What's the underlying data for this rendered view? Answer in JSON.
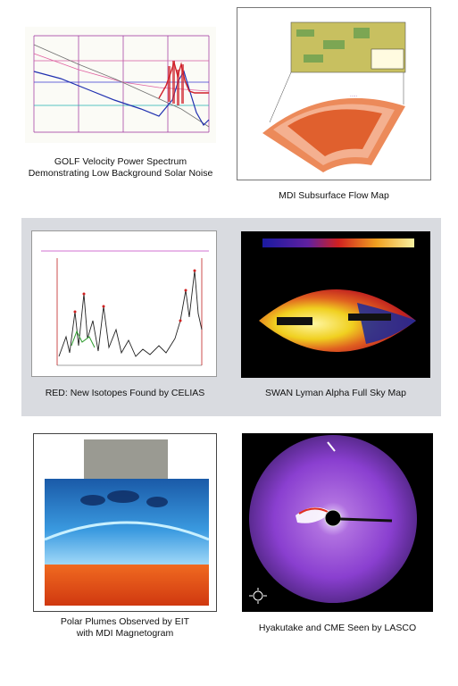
{
  "panels": [
    {
      "caption_line1": "GOLF Velocity Power Spectrum",
      "caption_line2": "Demonstrating Low Background Solar Noise"
    },
    {
      "caption_line1": "MDI Subsurface Flow Map"
    },
    {
      "caption_line1": "RED: New Isotopes Found by CELIAS"
    },
    {
      "caption_line1": "SWAN Lyman Alpha Full Sky Map"
    },
    {
      "caption_line1": "Polar Plumes Observed by EIT",
      "caption_line2": "with MDI Magnetogram"
    },
    {
      "caption_line1": "Hyakutake and CME Seen by LASCO"
    }
  ],
  "colors": {
    "band": "#d9dbe0",
    "golf_red": "#d0202a",
    "golf_blue": "#2030b0",
    "lasco_purple": "#8a3fd0",
    "swan_yellow": "#f0d020",
    "eit_blue": "#2a7fd0",
    "eit_orange": "#e8501c"
  }
}
